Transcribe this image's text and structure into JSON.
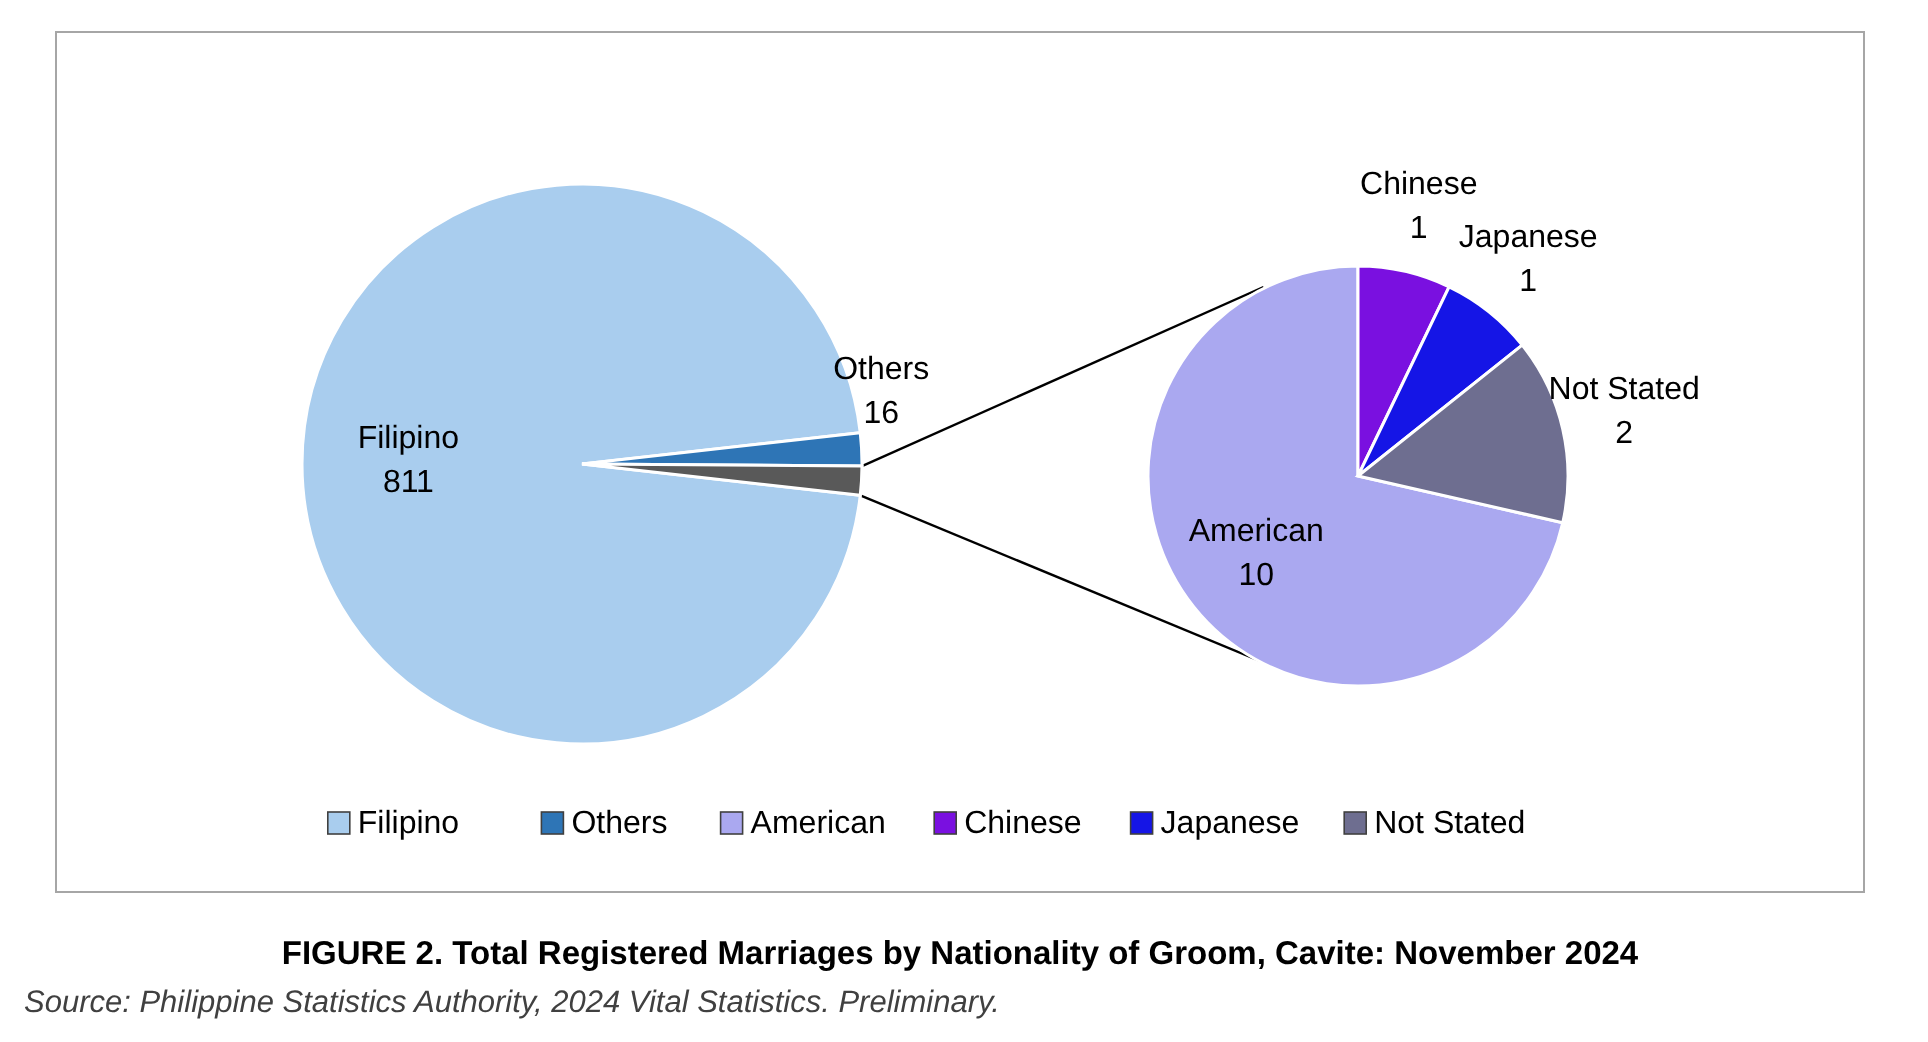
{
  "chart_data": [
    {
      "type": "pie",
      "title": "FIGURE 2. Total Registered Marriages by Nationality of Groom, Cavite: November 2024",
      "annotations": [
        "Source: Philippine Statistics Authority, 2024 Vital Statistics. Preliminary."
      ],
      "categories": [
        "Filipino",
        "Others",
        null
      ],
      "values": [
        811,
        16,
        14
      ],
      "value_labels": [
        "811",
        "16",
        null
      ],
      "colors": [
        "#a9cdee",
        "#2e75b6",
        "#595959"
      ],
      "legend": "bottom"
    },
    {
      "type": "pie",
      "categories": [
        "American",
        "Chinese",
        "Japanese",
        "Not Stated"
      ],
      "values": [
        10,
        1,
        1,
        2
      ],
      "data_labels": true,
      "colors": [
        "#aaa8f0",
        "#7a10e0",
        "#1515e6",
        "#6e6e90"
      ],
      "legend": "bottom"
    }
  ]
}
